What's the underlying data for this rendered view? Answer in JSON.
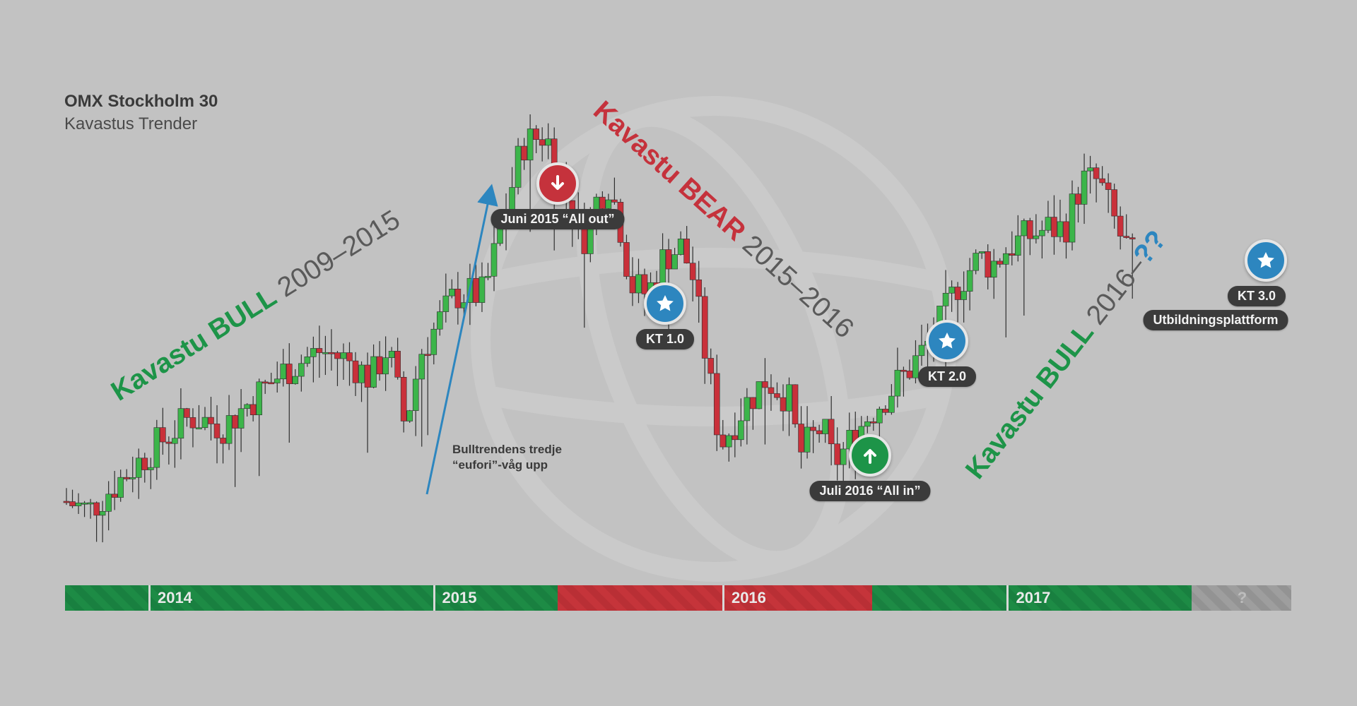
{
  "header": {
    "title": "OMX Stockholm 30",
    "subtitle": "Kavastus Trender"
  },
  "colors": {
    "bull": "#1d8b45",
    "bear": "#c5343a",
    "unknown": "#9e9e9e",
    "candle_up": "#3cb54a",
    "candle_down": "#c9303a",
    "arrow": "#2d86bf"
  },
  "trend_labels": [
    {
      "strong": "Kavastu BULL",
      "thin": " 2009–2015",
      "color": "#1d9448"
    },
    {
      "strong": "Kavastu BEAR",
      "thin": " 2015–2016",
      "color": "#c5323c"
    },
    {
      "strong": "Kavastu BULL",
      "thin": " 2016–",
      "extra": "??",
      "color": "#1d9448"
    }
  ],
  "annotations": {
    "sell": {
      "label": "Juni 2015 “All out”",
      "icon": "arrow-down-icon"
    },
    "buy": {
      "label": "Juli 2016 “All in”",
      "icon": "arrow-up-icon"
    },
    "kt1": {
      "label": "KT 1.0",
      "icon": "star-icon"
    },
    "kt2": {
      "label": "KT 2.0",
      "icon": "star-icon"
    },
    "kt3": {
      "label": "KT 3.0",
      "icon": "star-icon"
    },
    "kt3_sub": {
      "label": "Utbildningsplattform"
    },
    "wave_note": {
      "line1": "Bulltrendens tredje",
      "line2": "“eufori”-våg upp"
    }
  },
  "timeline": {
    "years": [
      "2014",
      "2015",
      "2016",
      "2017"
    ],
    "unknown_label": "?",
    "phases": [
      {
        "trend": "bull",
        "from": 0,
        "to": 0.402
      },
      {
        "trend": "bear",
        "from": 0.402,
        "to": 0.658
      },
      {
        "trend": "bull",
        "from": 0.658,
        "to": 0.919
      },
      {
        "trend": "unknown",
        "from": 0.919,
        "to": 1.0
      }
    ],
    "year_starts": [
      0.068,
      0.3,
      0.536,
      0.768
    ]
  },
  "chart_data": {
    "type": "candlestick",
    "title": "OMX Stockholm 30",
    "subtitle": "Kavastus Trender",
    "x_range": [
      0,
      1
    ],
    "close_path": [
      [
        0.0,
        1340
      ],
      [
        0.02,
        1330
      ],
      [
        0.045,
        1360
      ],
      [
        0.08,
        1400
      ],
      [
        0.11,
        1430
      ],
      [
        0.14,
        1420
      ],
      [
        0.175,
        1460
      ],
      [
        0.195,
        1480
      ],
      [
        0.225,
        1500
      ],
      [
        0.25,
        1490
      ],
      [
        0.27,
        1470
      ],
      [
        0.285,
        1505
      ],
      [
        0.3,
        1420
      ],
      [
        0.315,
        1500
      ],
      [
        0.345,
        1560
      ],
      [
        0.37,
        1560
      ],
      [
        0.39,
        1650
      ],
      [
        0.4,
        1700
      ],
      [
        0.405,
        1720
      ],
      [
        0.425,
        1730
      ],
      [
        0.44,
        1670
      ],
      [
        0.46,
        1620
      ],
      [
        0.47,
        1660
      ],
      [
        0.48,
        1680
      ],
      [
        0.49,
        1640
      ],
      [
        0.5,
        1570
      ],
      [
        0.515,
        1560
      ],
      [
        0.53,
        1600
      ],
      [
        0.545,
        1610
      ],
      [
        0.555,
        1580
      ],
      [
        0.57,
        1470
      ],
      [
        0.58,
        1400
      ],
      [
        0.6,
        1440
      ],
      [
        0.62,
        1470
      ],
      [
        0.64,
        1450
      ],
      [
        0.65,
        1390
      ],
      [
        0.67,
        1420
      ],
      [
        0.68,
        1380
      ],
      [
        0.69,
        1395
      ],
      [
        0.71,
        1430
      ],
      [
        0.725,
        1450
      ],
      [
        0.74,
        1470
      ],
      [
        0.76,
        1500
      ],
      [
        0.775,
        1530
      ],
      [
        0.79,
        1570
      ],
      [
        0.81,
        1600
      ],
      [
        0.82,
        1590
      ],
      [
        0.835,
        1610
      ],
      [
        0.85,
        1620
      ],
      [
        0.87,
        1630
      ],
      [
        0.885,
        1630
      ],
      [
        0.9,
        1680
      ],
      [
        0.915,
        1680
      ],
      [
        0.925,
        1650
      ],
      [
        0.935,
        1620
      ],
      [
        0.945,
        1600
      ]
    ],
    "y_range": [
      1280,
      1760
    ],
    "phase_boundaries": [
      "Juni 2015",
      "Juli 2016"
    ]
  }
}
